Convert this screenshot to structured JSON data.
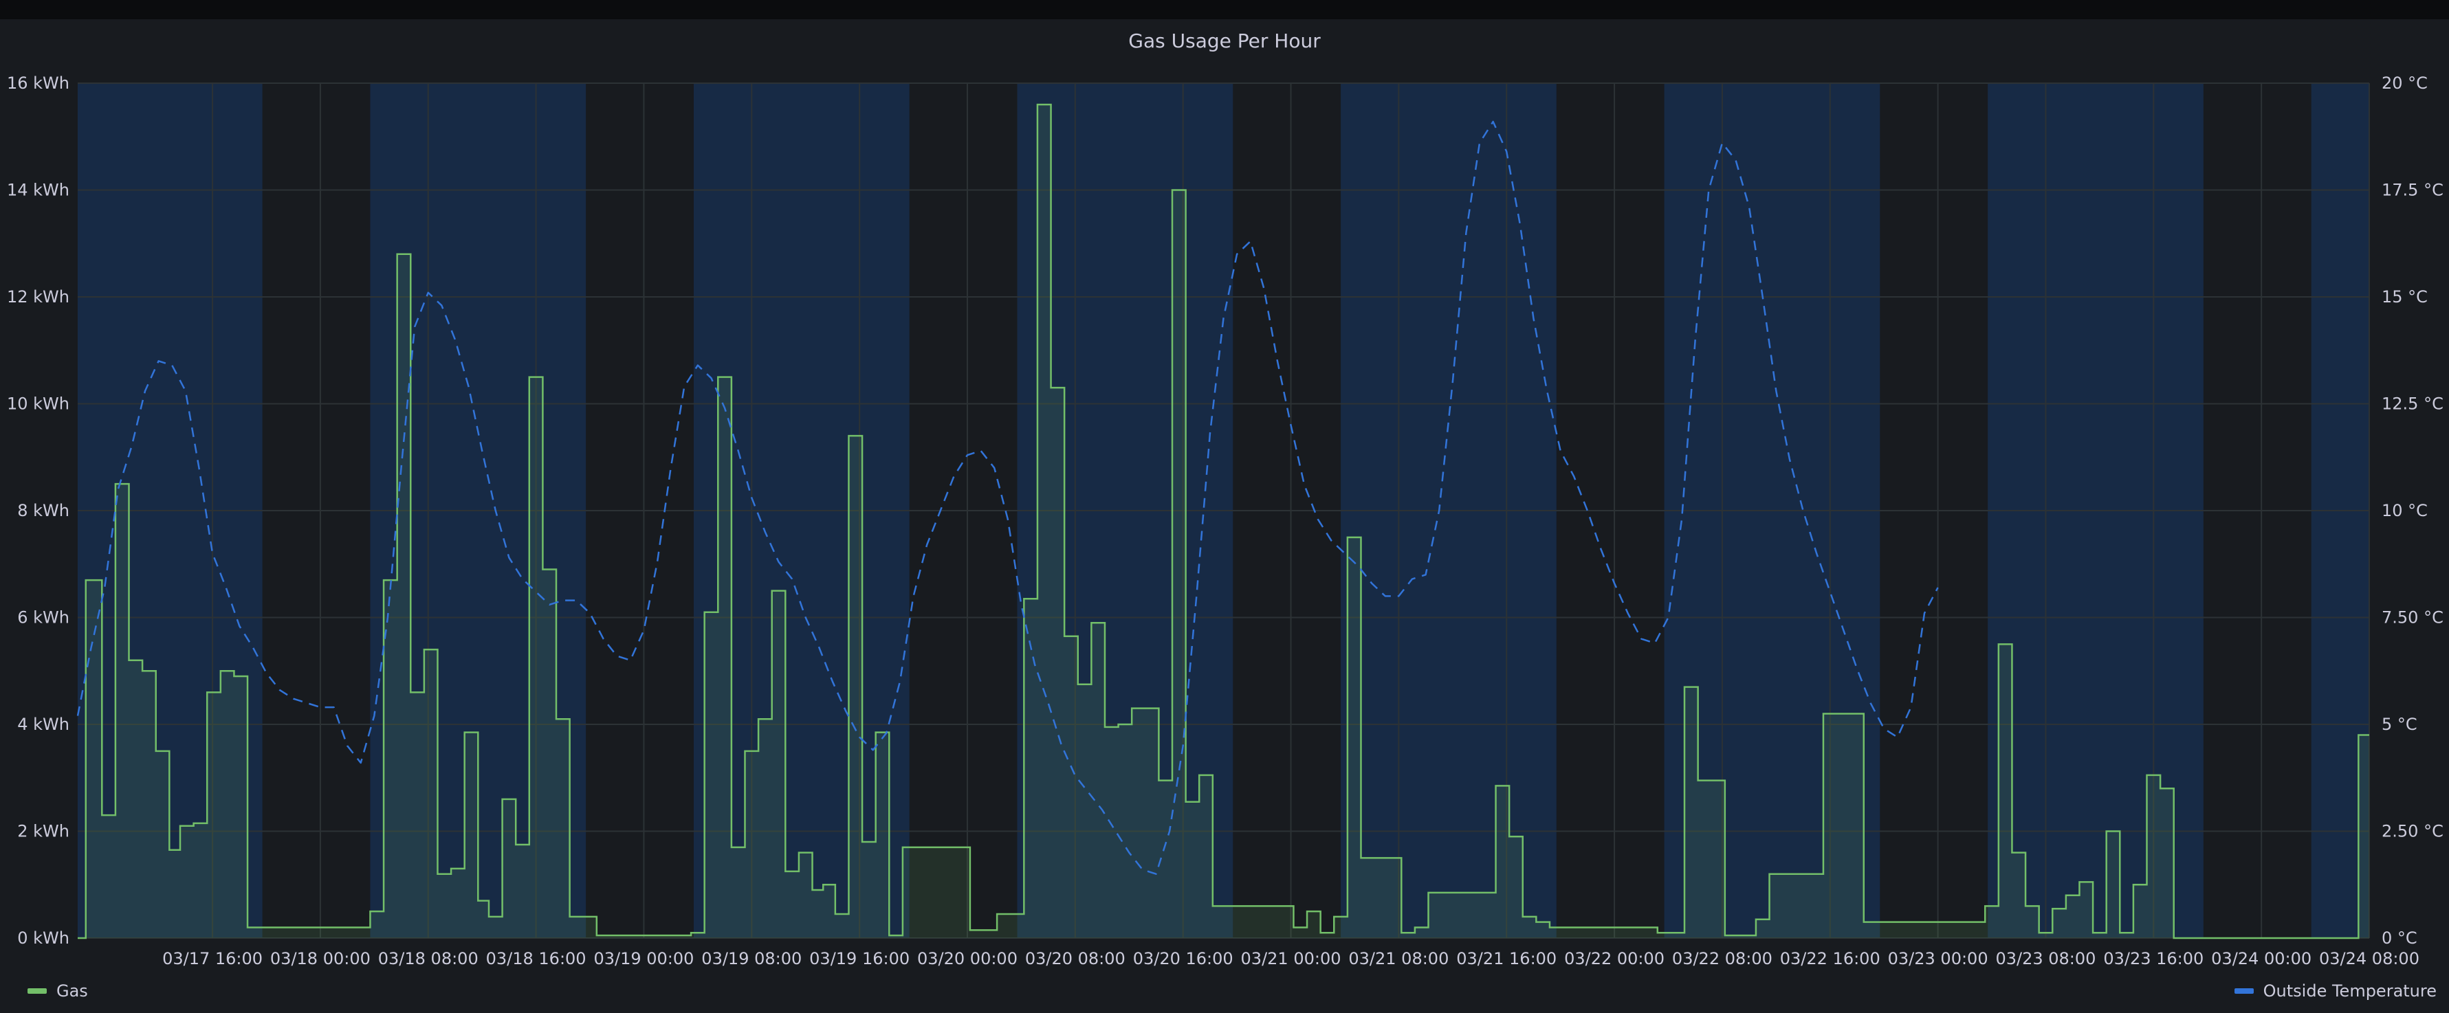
{
  "panel": {
    "title": "Gas Usage Per Hour"
  },
  "colors": {
    "background": "#181b1f",
    "gas_line": "#73bf69",
    "gas_fill": "#73bf69",
    "temp_line": "#3274d9",
    "day_band": "#173056",
    "grid": "#2c3235",
    "text": "#ccccdc"
  },
  "chart_data": {
    "type": "line",
    "title": "Gas Usage Per Hour",
    "x_unit": "hours since 03/17 06:00",
    "x_range": [
      0,
      170
    ],
    "left_axis": {
      "unit": "kWh",
      "range": [
        0,
        16
      ],
      "ticks": [
        "0 kWh",
        "2 kWh",
        "4 kWh",
        "6 kWh",
        "8 kWh",
        "10 kWh",
        "12 kWh",
        "14 kWh",
        "16 kWh"
      ],
      "tick_values": [
        0,
        2,
        4,
        6,
        8,
        10,
        12,
        14,
        16
      ]
    },
    "right_axis": {
      "unit": "°C",
      "range": [
        0,
        20
      ],
      "ticks": [
        "0 °C",
        "2.50 °C",
        "5 °C",
        "7.50 °C",
        "10 °C",
        "12.5 °C",
        "15 °C",
        "17.5 °C",
        "20 °C"
      ],
      "tick_values": [
        0,
        2.5,
        5,
        7.5,
        10,
        12.5,
        15,
        17.5,
        20
      ]
    },
    "x_ticks": [
      {
        "label": "03/17 16:00",
        "x": 10
      },
      {
        "label": "03/18 00:00",
        "x": 18
      },
      {
        "label": "03/18 08:00",
        "x": 26
      },
      {
        "label": "03/18 16:00",
        "x": 34
      },
      {
        "label": "03/19 00:00",
        "x": 42
      },
      {
        "label": "03/19 08:00",
        "x": 50
      },
      {
        "label": "03/19 16:00",
        "x": 58
      },
      {
        "label": "03/20 00:00",
        "x": 66
      },
      {
        "label": "03/20 08:00",
        "x": 74
      },
      {
        "label": "03/20 16:00",
        "x": 82
      },
      {
        "label": "03/21 00:00",
        "x": 90
      },
      {
        "label": "03/21 08:00",
        "x": 98
      },
      {
        "label": "03/21 16:00",
        "x": 106
      },
      {
        "label": "03/22 00:00",
        "x": 114
      },
      {
        "label": "03/22 08:00",
        "x": 122
      },
      {
        "label": "03/22 16:00",
        "x": 130
      },
      {
        "label": "03/23 00:00",
        "x": 138
      },
      {
        "label": "03/23 08:00",
        "x": 146
      },
      {
        "label": "03/23 16:00",
        "x": 154
      },
      {
        "label": "03/24 00:00",
        "x": 162
      },
      {
        "label": "03/24 08:00",
        "x": 170
      }
    ],
    "day_bands": [
      [
        0,
        13.7
      ],
      [
        21.7,
        37.7
      ],
      [
        45.7,
        61.7
      ],
      [
        69.7,
        85.7
      ],
      [
        93.7,
        109.7
      ],
      [
        117.7,
        133.7
      ],
      [
        141.7,
        157.7
      ],
      [
        165.7,
        170
      ]
    ],
    "legend": {
      "position": "bottom",
      "items": [
        "Gas",
        "Outside Temperature"
      ]
    },
    "series": [
      {
        "name": "Gas",
        "axis": "left",
        "style": "step-filled",
        "points": [
          [
            0,
            0
          ],
          [
            0.6,
            6.7
          ],
          [
            1.8,
            2.3
          ],
          [
            2.8,
            8.5
          ],
          [
            3.8,
            5.2
          ],
          [
            4.8,
            5.0
          ],
          [
            5.8,
            3.5
          ],
          [
            6.8,
            1.65
          ],
          [
            7.6,
            2.1
          ],
          [
            8.6,
            2.15
          ],
          [
            9.6,
            4.6
          ],
          [
            10.6,
            5.0
          ],
          [
            11.6,
            4.9
          ],
          [
            12.6,
            0.2
          ],
          [
            21.7,
            0.5
          ],
          [
            22.7,
            6.7
          ],
          [
            23.7,
            12.8
          ],
          [
            24.7,
            4.6
          ],
          [
            25.7,
            5.4
          ],
          [
            26.7,
            1.2
          ],
          [
            27.7,
            1.3
          ],
          [
            28.7,
            3.85
          ],
          [
            29.7,
            0.7
          ],
          [
            30.5,
            0.4
          ],
          [
            31.5,
            2.6
          ],
          [
            32.5,
            1.75
          ],
          [
            33.5,
            10.5
          ],
          [
            34.5,
            6.9
          ],
          [
            35.5,
            4.1
          ],
          [
            36.5,
            0.4
          ],
          [
            38.5,
            0.05
          ],
          [
            45.5,
            0.1
          ],
          [
            46.5,
            6.1
          ],
          [
            47.5,
            10.5
          ],
          [
            48.5,
            1.7
          ],
          [
            49.5,
            3.5
          ],
          [
            50.5,
            4.1
          ],
          [
            51.5,
            6.5
          ],
          [
            52.5,
            1.25
          ],
          [
            53.5,
            1.6
          ],
          [
            54.5,
            0.9
          ],
          [
            55.3,
            1.0
          ],
          [
            56.2,
            0.45
          ],
          [
            57.2,
            9.4
          ],
          [
            58.2,
            1.8
          ],
          [
            59.2,
            3.85
          ],
          [
            60.2,
            0.05
          ],
          [
            61.2,
            1.7
          ],
          [
            66.2,
            0.15
          ],
          [
            68.2,
            0.45
          ],
          [
            70.2,
            6.35
          ],
          [
            71.2,
            15.6
          ],
          [
            72.2,
            10.3
          ],
          [
            73.2,
            5.65
          ],
          [
            74.2,
            4.75
          ],
          [
            75.2,
            5.9
          ],
          [
            76.2,
            3.95
          ],
          [
            77.2,
            4.0
          ],
          [
            78.2,
            4.3
          ],
          [
            80.2,
            2.95
          ],
          [
            81.2,
            14.0
          ],
          [
            82.2,
            2.55
          ],
          [
            83.2,
            3.05
          ],
          [
            84.2,
            0.6
          ],
          [
            90.2,
            0.2
          ],
          [
            91.2,
            0.5
          ],
          [
            92.2,
            0.1
          ],
          [
            93.2,
            0.4
          ],
          [
            94.2,
            7.5
          ],
          [
            95.2,
            1.5
          ],
          [
            98.2,
            0.1
          ],
          [
            99.2,
            0.2
          ],
          [
            100.2,
            0.85
          ],
          [
            105.2,
            2.85
          ],
          [
            106.2,
            1.9
          ],
          [
            107.2,
            0.4
          ],
          [
            108.2,
            0.3
          ],
          [
            109.2,
            0.2
          ],
          [
            117.2,
            0.1
          ],
          [
            119.2,
            4.7
          ],
          [
            120.2,
            2.95
          ],
          [
            122.2,
            0.05
          ],
          [
            124.5,
            0.35
          ],
          [
            125.5,
            1.2
          ],
          [
            129.5,
            4.2
          ],
          [
            132.5,
            0.3
          ],
          [
            141.5,
            0.6
          ],
          [
            142.5,
            5.5
          ],
          [
            143.5,
            1.6
          ],
          [
            144.5,
            0.6
          ],
          [
            145.5,
            0.1
          ],
          [
            146.5,
            0.55
          ],
          [
            147.5,
            0.8
          ],
          [
            148.5,
            1.05
          ],
          [
            149.5,
            0.1
          ],
          [
            150.5,
            2.0
          ],
          [
            151.5,
            0.1
          ],
          [
            152.5,
            1.0
          ],
          [
            153.5,
            3.05
          ],
          [
            154.5,
            2.8
          ],
          [
            155.5,
            0.0
          ],
          [
            169.2,
            3.8
          ],
          [
            170,
            3.8
          ]
        ]
      },
      {
        "name": "Outside Temperature",
        "axis": "right",
        "style": "dashed",
        "points": [
          [
            0,
            5.2
          ],
          [
            1,
            6.8
          ],
          [
            2,
            8.2
          ],
          [
            3,
            10.5
          ],
          [
            4,
            11.5
          ],
          [
            5,
            12.8
          ],
          [
            6,
            13.5
          ],
          [
            7,
            13.4
          ],
          [
            8,
            12.8
          ],
          [
            9,
            11.0
          ],
          [
            10,
            9.0
          ],
          [
            11,
            8.2
          ],
          [
            12,
            7.3
          ],
          [
            13,
            6.8
          ],
          [
            14,
            6.2
          ],
          [
            15,
            5.8
          ],
          [
            16,
            5.6
          ],
          [
            17,
            5.5
          ],
          [
            18,
            5.4
          ],
          [
            19,
            5.4
          ],
          [
            20,
            4.5
          ],
          [
            21,
            4.1
          ],
          [
            22,
            5.2
          ],
          [
            23,
            7.5
          ],
          [
            24,
            11.0
          ],
          [
            25,
            14.3
          ],
          [
            26,
            15.1
          ],
          [
            27,
            14.8
          ],
          [
            28,
            14.0
          ],
          [
            29,
            12.9
          ],
          [
            30,
            11.4
          ],
          [
            31,
            10.0
          ],
          [
            32,
            8.9
          ],
          [
            33,
            8.4
          ],
          [
            34,
            8.1
          ],
          [
            35,
            7.8
          ],
          [
            36,
            7.9
          ],
          [
            37,
            7.9
          ],
          [
            38,
            7.6
          ],
          [
            39,
            7.0
          ],
          [
            40,
            6.6
          ],
          [
            41,
            6.5
          ],
          [
            42,
            7.2
          ],
          [
            43,
            8.8
          ],
          [
            44,
            11.0
          ],
          [
            45,
            12.9
          ],
          [
            46,
            13.4
          ],
          [
            47,
            13.1
          ],
          [
            48,
            12.4
          ],
          [
            49,
            11.4
          ],
          [
            50,
            10.3
          ],
          [
            51,
            9.5
          ],
          [
            52,
            8.8
          ],
          [
            53,
            8.4
          ],
          [
            54,
            7.5
          ],
          [
            55,
            6.8
          ],
          [
            56,
            6.0
          ],
          [
            57,
            5.3
          ],
          [
            58,
            4.7
          ],
          [
            59,
            4.4
          ],
          [
            60,
            4.8
          ],
          [
            61,
            6.0
          ],
          [
            62,
            8.0
          ],
          [
            63,
            9.2
          ],
          [
            64,
            10.0
          ],
          [
            65,
            10.8
          ],
          [
            66,
            11.3
          ],
          [
            67,
            11.4
          ],
          [
            68,
            11.0
          ],
          [
            69,
            9.8
          ],
          [
            70,
            7.8
          ],
          [
            71,
            6.4
          ],
          [
            72,
            5.5
          ],
          [
            73,
            4.5
          ],
          [
            74,
            3.8
          ],
          [
            75,
            3.4
          ],
          [
            76,
            3.0
          ],
          [
            77,
            2.5
          ],
          [
            78,
            2.0
          ],
          [
            79,
            1.6
          ],
          [
            80,
            1.5
          ],
          [
            81,
            2.5
          ],
          [
            82,
            4.5
          ],
          [
            83,
            8.0
          ],
          [
            84,
            11.8
          ],
          [
            85,
            14.5
          ],
          [
            86,
            16.0
          ],
          [
            87,
            16.3
          ],
          [
            88,
            15.2
          ],
          [
            89,
            13.5
          ],
          [
            90,
            12.0
          ],
          [
            91,
            10.6
          ],
          [
            92,
            9.8
          ],
          [
            93,
            9.3
          ],
          [
            94,
            9.0
          ],
          [
            95,
            8.7
          ],
          [
            96,
            8.3
          ],
          [
            97,
            8.0
          ],
          [
            98,
            8.0
          ],
          [
            99,
            8.4
          ],
          [
            100,
            8.5
          ],
          [
            101,
            10.0
          ],
          [
            102,
            13.0
          ],
          [
            103,
            16.5
          ],
          [
            104,
            18.6
          ],
          [
            105,
            19.1
          ],
          [
            106,
            18.4
          ],
          [
            107,
            16.7
          ],
          [
            108,
            14.5
          ],
          [
            109,
            12.8
          ],
          [
            110,
            11.4
          ],
          [
            111,
            10.8
          ],
          [
            112,
            10.0
          ],
          [
            113,
            9.1
          ],
          [
            114,
            8.3
          ],
          [
            115,
            7.6
          ],
          [
            116,
            7.0
          ],
          [
            117,
            6.9
          ],
          [
            118,
            7.5
          ],
          [
            119,
            9.8
          ],
          [
            120,
            14.0
          ],
          [
            121,
            17.5
          ],
          [
            122,
            18.6
          ],
          [
            123,
            18.2
          ],
          [
            124,
            17.1
          ],
          [
            125,
            15.0
          ],
          [
            126,
            12.8
          ],
          [
            127,
            11.2
          ],
          [
            128,
            10.0
          ],
          [
            129,
            9.0
          ],
          [
            130,
            8.1
          ],
          [
            131,
            7.2
          ],
          [
            132,
            6.3
          ],
          [
            133,
            5.5
          ],
          [
            134,
            4.9
          ],
          [
            135,
            4.7
          ],
          [
            136,
            5.4
          ],
          [
            137,
            7.6
          ],
          [
            138,
            8.2
          ]
        ]
      }
    ]
  }
}
